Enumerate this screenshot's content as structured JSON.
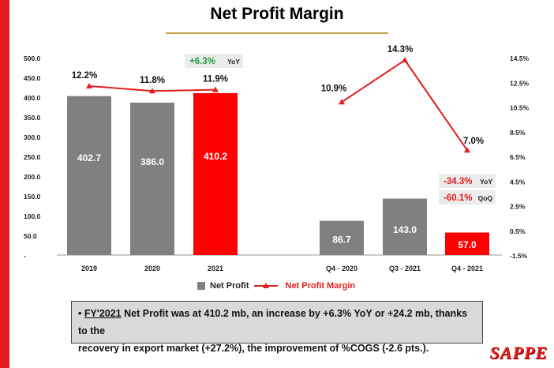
{
  "page": {
    "title": "Net Profit Margin"
  },
  "chart_data": {
    "type": "bar",
    "title": "Net Profit Margin",
    "categories": [
      "2019",
      "2020",
      "2021",
      "Q4 - 2020",
      "Q3 - 2021",
      "Q4 - 2021"
    ],
    "series": [
      {
        "name": "Net Profit",
        "type": "bar",
        "axis": "left",
        "values": [
          402.7,
          386.0,
          410.2,
          86.7,
          143.0,
          57.0
        ],
        "labels": [
          "402.7",
          "386.0",
          "410.2",
          "86.7",
          "143.0",
          "57.0"
        ],
        "colors": [
          "#808080",
          "#808080",
          "#ff0000",
          "#808080",
          "#808080",
          "#ff0000"
        ]
      },
      {
        "name": "Net Profit Margin",
        "type": "line",
        "axis": "right",
        "values": [
          12.2,
          11.8,
          11.9,
          10.9,
          14.3,
          7.0
        ],
        "labels": [
          "12.2%",
          "11.8%",
          "11.9%",
          "10.9%",
          "14.3%",
          "7.0%"
        ],
        "color": "#e11d1d"
      }
    ],
    "y_left": {
      "ylim": [
        0,
        500
      ],
      "ticks": [
        "500.0",
        "450.0",
        "400.0",
        "350.0",
        "300.0",
        "250.0",
        "200.0",
        "150.0",
        "100.0",
        "50.0",
        "-"
      ]
    },
    "y_right": {
      "ylim": [
        -1.5,
        14.5
      ],
      "ticks": [
        "14.5%",
        "12.5%",
        "10.5%",
        "8.5%",
        "6.5%",
        "4.5%",
        "2.5%",
        "0.5%",
        "-1.5%"
      ]
    },
    "annotations": {
      "yoy_2021": {
        "value": "+6.3%",
        "unit": "YoY",
        "color": "#1a9e3a"
      },
      "yoy_q4": {
        "value": "-34.3%",
        "unit": "YoY",
        "color": "#e11d1d"
      },
      "qoq_q4": {
        "value": "-60.1%",
        "unit": "QoQ",
        "color": "#e11d1d"
      }
    },
    "legend": {
      "position": "bottom",
      "items": [
        "Net Profit",
        "Net Profit Margin"
      ]
    }
  },
  "note": {
    "bullet": "•",
    "fy": "FY'2021",
    "line1_rest": " Net Profit was at 410.2 mb, an increase by +6.3% YoY or +24.2 mb, thanks to the",
    "line2": "recovery in export market (+27.2%), the improvement of %COGS (-2.6 pts.)."
  },
  "logo": {
    "text": "SAPPE"
  }
}
